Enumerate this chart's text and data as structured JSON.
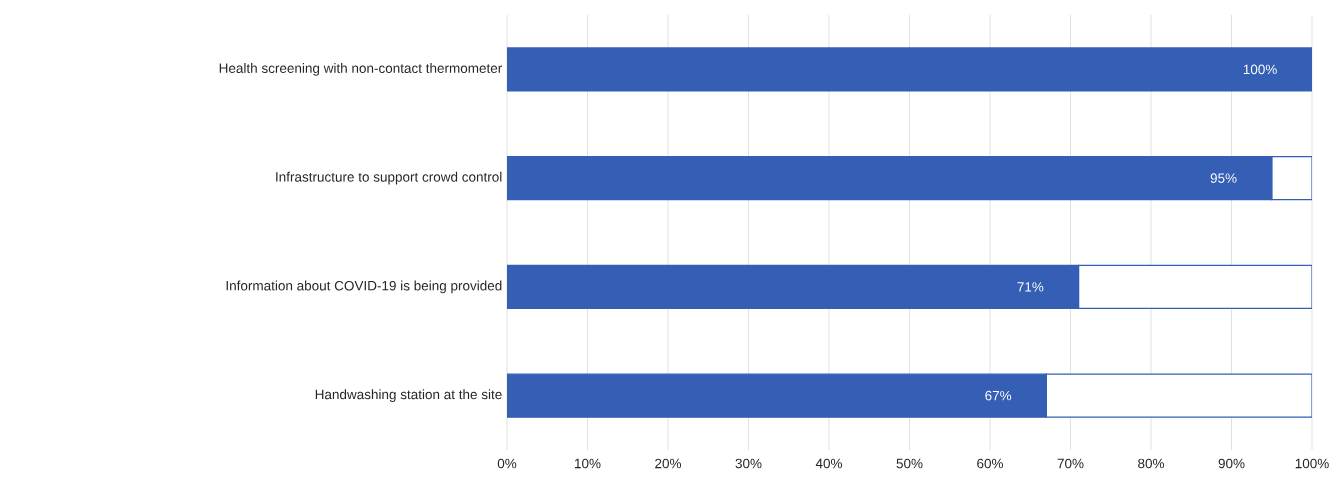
{
  "chart_data": {
    "type": "bar",
    "orientation": "horizontal",
    "stacked": true,
    "categories": [
      "Health screening with non-contact thermometer",
      "Infrastructure to support crowd control",
      "Information about COVID-19 is being provided",
      "Handwashing station at the site"
    ],
    "series": [
      {
        "color": "#345fb4",
        "values": [
          100,
          95,
          71,
          67
        ],
        "value_labels": [
          "100%",
          "95%",
          "71%",
          "67%"
        ]
      },
      {
        "color": "#ffffff",
        "values": [
          0,
          5,
          29,
          33
        ]
      }
    ],
    "xlim": [
      0,
      100
    ],
    "xticks": [
      {
        "value": 0,
        "label": "0%"
      },
      {
        "value": 10,
        "label": "10%"
      },
      {
        "value": 20,
        "label": "20%"
      },
      {
        "value": 30,
        "label": "30%"
      },
      {
        "value": 40,
        "label": "40%"
      },
      {
        "value": 50,
        "label": "50%"
      },
      {
        "value": 60,
        "label": "60%"
      },
      {
        "value": 70,
        "label": "70%"
      },
      {
        "value": 80,
        "label": "80%"
      },
      {
        "value": 90,
        "label": "90%"
      },
      {
        "value": 100,
        "label": "100%"
      }
    ],
    "grid": "x"
  }
}
